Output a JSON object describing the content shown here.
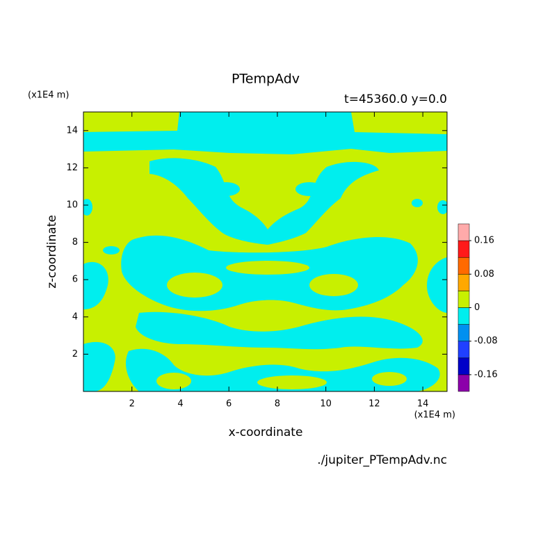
{
  "chart_data": {
    "type": "contour",
    "title": "PTempAdv",
    "subtitle": "t=45360.0 y=0.0",
    "x_label": "x-coordinate",
    "y_label": "z-coordinate",
    "x_unit": "(x1E4 m)",
    "y_unit": "(x1E4 m)",
    "source": "./jupiter_PTempAdv.nc",
    "xlim": [
      0,
      15
    ],
    "ylim": [
      0,
      15
    ],
    "xticks": [
      2,
      4,
      6,
      8,
      10,
      12,
      14
    ],
    "yticks": [
      2,
      4,
      6,
      8,
      10,
      12,
      14
    ],
    "colorbar": {
      "levels": [
        -0.16,
        -0.12,
        -0.08,
        -0.04,
        0,
        0.04,
        0.08,
        0.12,
        0.16
      ],
      "colors": [
        "#8c00aa",
        "#0000c8",
        "#2040ff",
        "#0090f0",
        "#00eeee",
        "#c8f000",
        "#ffa800",
        "#ff6a00",
        "#ff1a1a",
        "#ffaaaa"
      ],
      "ticks": [
        0.16,
        0.08,
        0,
        -0.08,
        -0.16
      ]
    }
  }
}
